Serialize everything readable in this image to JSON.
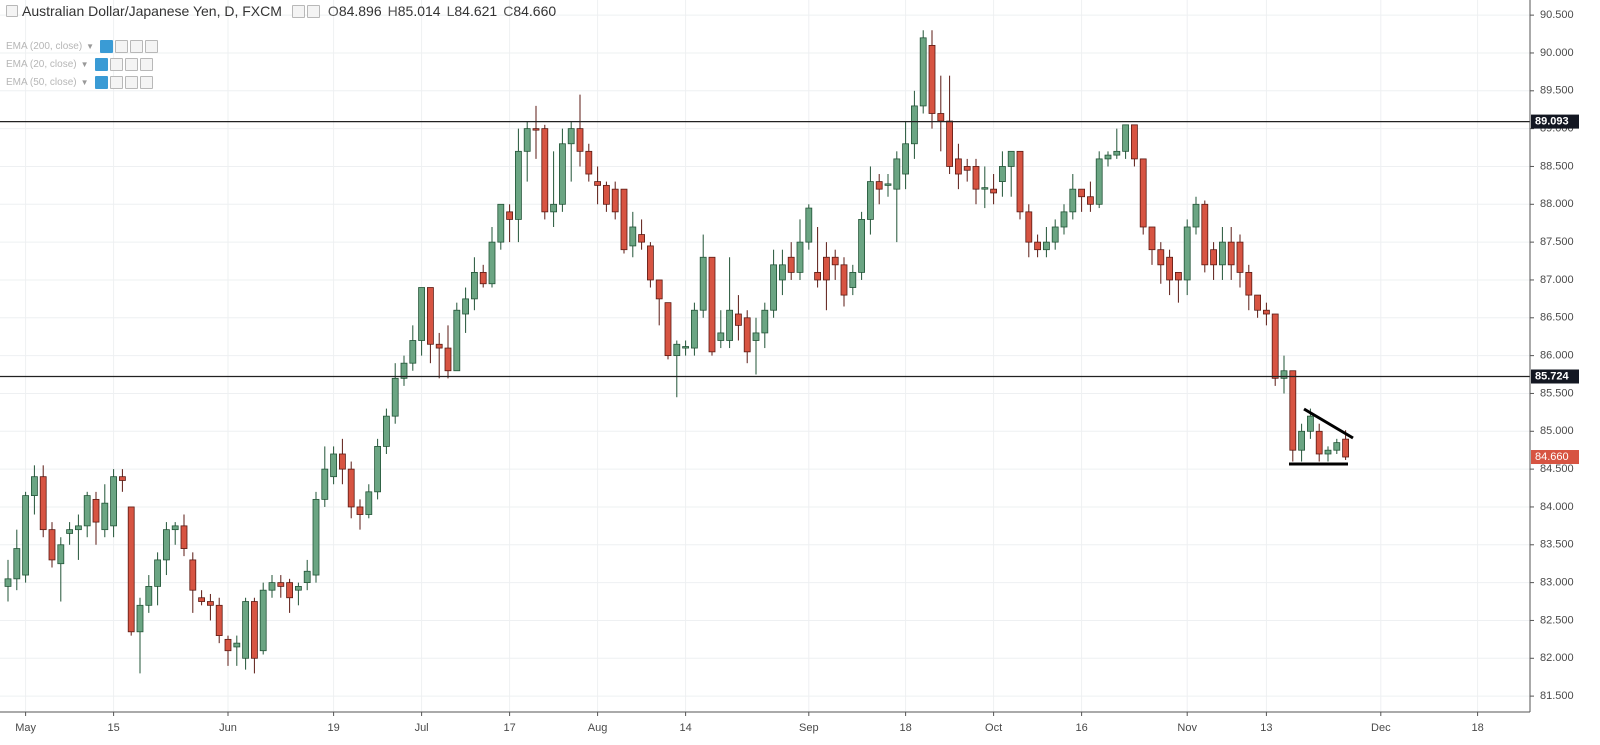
{
  "header": {
    "symbol": "Australian Dollar/Japanese Yen, D, FXCM",
    "ohlc": [
      {
        "key": "O",
        "text": "84.896"
      },
      {
        "key": "H",
        "text": "85.014"
      },
      {
        "key": "L",
        "text": "84.621"
      },
      {
        "key": "C",
        "text": "84.660"
      }
    ]
  },
  "indicators": [
    "EMA (200, close)",
    "EMA (20, close)",
    "EMA (50, close)"
  ],
  "chart_data": {
    "type": "candlestick",
    "categories": [
      null,
      null,
      "May",
      null,
      null,
      null,
      null,
      null,
      null,
      null,
      null,
      null,
      "15",
      null,
      null,
      null,
      null,
      null,
      null,
      null,
      null,
      null,
      null,
      null,
      null,
      "Jun",
      null,
      null,
      null,
      null,
      null,
      null,
      null,
      null,
      null,
      null,
      null,
      "19",
      null,
      null,
      null,
      null,
      null,
      null,
      null,
      null,
      null,
      "Jul",
      null,
      null,
      null,
      null,
      null,
      null,
      null,
      null,
      null,
      "17",
      null,
      null,
      null,
      null,
      null,
      null,
      null,
      null,
      null,
      "Aug",
      null,
      null,
      null,
      null,
      null,
      null,
      null,
      null,
      null,
      "14",
      null,
      null,
      null,
      null,
      null,
      null,
      null,
      null,
      null,
      null,
      null,
      null,
      null,
      "Sep",
      null,
      null,
      null,
      null,
      null,
      null,
      null,
      null,
      null,
      null,
      "18",
      null,
      null,
      null,
      null,
      null,
      null,
      null,
      null,
      null,
      "Oct",
      null,
      null,
      null,
      null,
      null,
      null,
      null,
      null,
      null,
      "16",
      null,
      null,
      null,
      null,
      null,
      null,
      null,
      null,
      null,
      null,
      null,
      "Nov",
      null,
      null,
      null,
      null,
      null,
      null,
      null,
      null,
      "13",
      null,
      null,
      null,
      null,
      null,
      null,
      null,
      null,
      null,
      null,
      null,
      null,
      "Dec",
      null,
      null,
      null,
      null,
      null,
      null,
      null,
      null,
      null,
      null,
      "18",
      null,
      null
    ],
    "open": [
      82.95,
      83.05,
      83.1,
      84.15,
      84.4,
      83.7,
      83.25,
      83.65,
      83.7,
      83.75,
      84.1,
      83.7,
      83.75,
      84.4,
      84.0,
      82.35,
      82.7,
      82.95,
      83.3,
      83.7,
      83.75,
      83.3,
      82.8,
      82.75,
      82.7,
      82.25,
      82.15,
      82.0,
      82.75,
      82.1,
      82.9,
      83.0,
      83.0,
      82.9,
      83.0,
      83.1,
      84.1,
      84.4,
      84.7,
      84.5,
      84.0,
      83.9,
      84.2,
      84.8,
      85.2,
      85.7,
      85.9,
      86.2,
      86.9,
      86.15,
      86.1,
      85.8,
      86.55,
      86.75,
      87.1,
      86.95,
      87.5,
      87.9,
      87.8,
      88.7,
      89.0,
      89.0,
      87.9,
      88.0,
      88.8,
      89.0,
      88.7,
      88.3,
      88.25,
      88.2,
      88.2,
      87.45,
      87.6,
      87.45,
      87.0,
      86.7,
      86.0,
      86.1,
      86.1,
      86.6,
      87.3,
      86.2,
      86.2,
      86.55,
      86.5,
      86.2,
      86.3,
      86.6,
      87.0,
      87.3,
      87.1,
      87.5,
      87.1,
      87.3,
      87.3,
      87.2,
      86.9,
      87.1,
      87.8,
      88.3,
      88.25,
      88.2,
      88.4,
      88.8,
      89.3,
      90.1,
      89.2,
      89.1,
      88.6,
      88.5,
      88.5,
      88.2,
      88.2,
      88.3,
      88.5,
      88.7,
      87.9,
      87.5,
      87.4,
      87.5,
      87.7,
      87.9,
      88.2,
      88.1,
      88.0,
      88.6,
      88.65,
      88.7,
      89.05,
      88.6,
      87.7,
      87.4,
      87.3,
      87.1,
      87.0,
      87.7,
      88.0,
      87.4,
      87.2,
      87.5,
      87.5,
      87.1,
      86.8,
      86.6,
      86.55,
      85.7,
      85.8,
      84.75,
      85.0,
      85.0,
      84.7,
      84.75,
      84.896,
      null,
      null,
      null,
      null,
      null,
      null,
      null,
      null,
      null,
      null,
      null,
      null,
      null,
      null,
      null,
      null,
      null
    ],
    "high": [
      83.3,
      83.7,
      84.2,
      84.55,
      84.55,
      83.8,
      83.6,
      83.8,
      83.9,
      84.2,
      84.2,
      84.3,
      84.5,
      84.5,
      84.0,
      82.8,
      83.1,
      83.4,
      83.8,
      83.8,
      83.9,
      83.4,
      82.9,
      82.85,
      82.8,
      82.3,
      82.3,
      82.8,
      82.8,
      83.0,
      83.1,
      83.1,
      83.05,
      83.0,
      83.3,
      84.2,
      84.8,
      84.8,
      84.9,
      84.6,
      84.1,
      84.3,
      84.9,
      85.3,
      85.9,
      86.0,
      86.4,
      86.9,
      86.9,
      86.3,
      86.4,
      86.7,
      86.9,
      87.3,
      87.2,
      87.7,
      88.0,
      88.0,
      89.0,
      89.1,
      89.3,
      89.05,
      88.7,
      89.0,
      89.1,
      89.45,
      88.8,
      88.5,
      88.3,
      88.3,
      88.2,
      87.9,
      87.8,
      87.5,
      87.0,
      86.7,
      86.2,
      86.2,
      86.7,
      87.6,
      87.3,
      86.6,
      87.3,
      86.8,
      86.6,
      86.5,
      86.7,
      87.4,
      87.4,
      87.5,
      87.8,
      88.0,
      87.7,
      87.5,
      87.4,
      87.3,
      87.2,
      87.9,
      88.5,
      88.4,
      88.4,
      88.7,
      89.1,
      89.5,
      90.3,
      90.3,
      89.7,
      89.7,
      88.8,
      88.6,
      88.6,
      88.5,
      88.4,
      88.7,
      88.7,
      88.7,
      88.0,
      87.6,
      87.7,
      87.8,
      88.0,
      88.4,
      88.2,
      88.3,
      88.7,
      88.7,
      89.0,
      89.05,
      89.05,
      88.6,
      87.7,
      87.5,
      87.4,
      87.1,
      87.8,
      88.1,
      88.05,
      87.5,
      87.7,
      87.7,
      87.6,
      87.2,
      86.8,
      86.7,
      86.55,
      86.0,
      85.8,
      85.1,
      85.3,
      85.1,
      84.8,
      84.9,
      85.014,
      null,
      null,
      null,
      null,
      null,
      null,
      null,
      null,
      null,
      null,
      null,
      null,
      null,
      null,
      null,
      null,
      null
    ],
    "low": [
      82.75,
      82.9,
      83.0,
      83.9,
      83.6,
      83.2,
      82.75,
      83.5,
      83.3,
      83.6,
      83.5,
      83.6,
      83.6,
      84.2,
      82.3,
      81.8,
      82.6,
      82.7,
      83.1,
      83.5,
      83.35,
      82.6,
      82.7,
      82.5,
      82.2,
      81.9,
      81.9,
      81.85,
      81.8,
      82.05,
      82.8,
      82.8,
      82.6,
      82.7,
      82.9,
      83.0,
      84.0,
      84.3,
      84.3,
      83.85,
      83.7,
      83.85,
      84.1,
      84.7,
      85.1,
      85.6,
      85.8,
      86.0,
      85.9,
      85.7,
      85.7,
      85.8,
      86.3,
      86.6,
      86.9,
      86.9,
      87.4,
      87.5,
      87.5,
      88.3,
      88.6,
      87.8,
      87.7,
      87.9,
      88.3,
      88.5,
      88.3,
      88.0,
      87.9,
      87.8,
      87.35,
      87.3,
      87.4,
      86.9,
      86.4,
      85.95,
      85.45,
      86.0,
      86.0,
      86.5,
      86.0,
      86.1,
      86.1,
      86.2,
      85.9,
      85.75,
      86.1,
      86.5,
      86.8,
      87.0,
      87.0,
      87.4,
      86.9,
      86.6,
      87.0,
      86.65,
      86.8,
      87.0,
      87.6,
      88.0,
      88.1,
      87.5,
      88.2,
      88.6,
      89.2,
      89.0,
      88.7,
      88.4,
      88.2,
      88.3,
      88.0,
      87.95,
      88.0,
      88.1,
      88.1,
      87.8,
      87.3,
      87.3,
      87.3,
      87.4,
      87.6,
      87.8,
      87.9,
      87.9,
      87.95,
      88.5,
      88.6,
      88.6,
      88.5,
      87.6,
      87.2,
      86.95,
      86.8,
      86.7,
      86.8,
      87.6,
      87.1,
      87.0,
      87.0,
      87.0,
      86.9,
      86.6,
      86.5,
      86.4,
      85.6,
      85.5,
      84.6,
      84.6,
      84.9,
      84.6,
      84.6,
      84.7,
      84.621,
      null,
      null,
      null,
      null,
      null,
      null,
      null,
      null,
      null,
      null,
      null,
      null,
      null,
      null,
      null,
      null,
      null
    ],
    "close": [
      83.05,
      83.45,
      84.15,
      84.4,
      83.7,
      83.3,
      83.5,
      83.7,
      83.75,
      84.15,
      83.8,
      84.05,
      84.4,
      84.35,
      82.35,
      82.7,
      82.95,
      83.3,
      83.7,
      83.75,
      83.45,
      82.9,
      82.75,
      82.7,
      82.3,
      82.1,
      82.2,
      82.75,
      82.0,
      82.9,
      83.0,
      82.95,
      82.8,
      82.95,
      83.15,
      84.1,
      84.5,
      84.7,
      84.5,
      84.0,
      83.9,
      84.2,
      84.8,
      85.2,
      85.7,
      85.9,
      86.2,
      86.9,
      86.15,
      86.1,
      85.8,
      86.6,
      86.75,
      87.1,
      86.95,
      87.5,
      88.0,
      87.8,
      88.7,
      89.0,
      88.98,
      87.9,
      88.0,
      88.8,
      89.0,
      88.7,
      88.4,
      88.25,
      88.0,
      87.9,
      87.4,
      87.7,
      87.5,
      87.0,
      86.75,
      86.0,
      86.15,
      86.12,
      86.6,
      87.3,
      86.05,
      86.3,
      86.6,
      86.4,
      86.05,
      86.3,
      86.6,
      87.2,
      87.2,
      87.1,
      87.5,
      87.95,
      87.0,
      87.0,
      87.2,
      86.8,
      87.1,
      87.8,
      88.3,
      88.2,
      88.27,
      88.6,
      88.8,
      89.3,
      90.2,
      89.2,
      89.1,
      88.5,
      88.4,
      88.45,
      88.2,
      88.22,
      88.15,
      88.5,
      88.7,
      87.9,
      87.5,
      87.4,
      87.5,
      87.7,
      87.9,
      88.2,
      88.1,
      88.0,
      88.6,
      88.65,
      88.7,
      89.05,
      88.6,
      87.7,
      87.4,
      87.2,
      87.0,
      87.0,
      87.7,
      88.0,
      87.2,
      87.2,
      87.5,
      87.2,
      87.1,
      86.8,
      86.6,
      86.55,
      85.7,
      85.8,
      84.75,
      85.0,
      85.2,
      84.7,
      84.75,
      84.85,
      84.66,
      null,
      null,
      null,
      null,
      null,
      null,
      null,
      null,
      null,
      null,
      null,
      null,
      null,
      null,
      null,
      null,
      null
    ],
    "up_color": "#6ba583",
    "down_color": "#d75442",
    "ylim": [
      81.29,
      90.7
    ],
    "yticks": [
      {
        "value": 81.5,
        "label": "81.500"
      },
      {
        "value": 82,
        "label": "82.000"
      },
      {
        "value": 82.5,
        "label": "82.500"
      },
      {
        "value": 83,
        "label": "83.000"
      },
      {
        "value": 83.5,
        "label": "83.500"
      },
      {
        "value": 84,
        "label": "84.000"
      },
      {
        "value": 84.5,
        "label": "84.500"
      },
      {
        "value": 85,
        "label": "85.000"
      },
      {
        "value": 85.5,
        "label": "85.500"
      },
      {
        "value": 86,
        "label": "86.000"
      },
      {
        "value": 86.5,
        "label": "86.500"
      },
      {
        "value": 87,
        "label": "87.000"
      },
      {
        "value": 87.5,
        "label": "87.500"
      },
      {
        "value": 88,
        "label": "88.000"
      },
      {
        "value": 88.5,
        "label": "88.500"
      },
      {
        "value": 89,
        "label": "89.000"
      },
      {
        "value": 89.5,
        "label": "89.500"
      },
      {
        "value": 90,
        "label": "90.000"
      },
      {
        "value": 90.5,
        "label": "90.500"
      }
    ],
    "hlines": [
      89.093,
      85.724
    ],
    "last_price": {
      "value": 84.66,
      "label": "84.660"
    },
    "grid": true
  }
}
